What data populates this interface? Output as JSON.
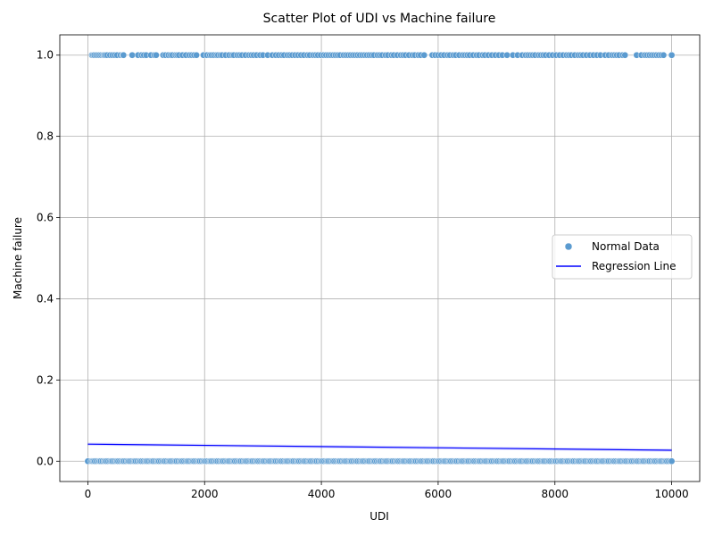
{
  "chart_data": {
    "type": "scatter",
    "title": "Scatter Plot of UDI vs Machine failure",
    "xlabel": "UDI",
    "ylabel": "Machine failure",
    "xlim": [
      -480,
      10480
    ],
    "ylim": [
      -0.05,
      1.05
    ],
    "xticks": [
      0,
      2000,
      4000,
      6000,
      8000,
      10000
    ],
    "yticks": [
      0.0,
      0.2,
      0.4,
      0.6,
      0.8,
      1.0
    ],
    "xtick_labels": [
      "0",
      "2000",
      "4000",
      "6000",
      "8000",
      "10000"
    ],
    "ytick_labels": [
      "0.0",
      "0.2",
      "0.4",
      "0.6",
      "0.8",
      "1.0"
    ],
    "grid": true,
    "legend_position": "center-right",
    "series": [
      {
        "name": "Normal Data",
        "kind": "scatter",
        "color": "#5b9bd0",
        "edgecolor": "#ffffff",
        "x_zero": [
          0,
          60,
          80,
          100,
          120,
          150,
          180,
          200,
          220,
          250,
          280,
          300,
          320,
          350,
          380,
          400,
          420,
          450,
          480,
          500,
          520,
          550,
          580,
          600,
          620,
          650,
          680,
          700,
          720,
          750,
          780,
          800,
          820,
          850,
          880,
          900,
          920,
          950,
          980,
          1000,
          1020,
          1050,
          1080,
          1100,
          1120,
          1150,
          1180,
          1200,
          1220,
          1250,
          1280,
          1300,
          1320,
          1350,
          1380,
          1400,
          1420,
          1450,
          1480,
          1500,
          1520,
          1550,
          1580,
          1600,
          1620,
          1650,
          1680,
          1700,
          1720,
          1750,
          1780,
          1800,
          1820,
          1850,
          1880,
          1900,
          1920,
          1950,
          1980,
          2000,
          2020,
          2050,
          2080,
          2100,
          2120,
          2150,
          2180,
          2200,
          2220,
          2250,
          2280,
          2300,
          2320,
          2350,
          2380,
          2400,
          2420,
          2450,
          2480,
          2500,
          2520,
          2550,
          2580,
          2600,
          2620,
          2650,
          2680,
          2700,
          2720,
          2750,
          2780,
          2800,
          2820,
          2850,
          2880,
          2900,
          2920,
          2950,
          2980,
          3000,
          3020,
          3050,
          3080,
          3100,
          3120,
          3150,
          3180,
          3200,
          3220,
          3250,
          3280,
          3300,
          3320,
          3350,
          3380,
          3400,
          3420,
          3450,
          3480,
          3500,
          3520,
          3550,
          3580,
          3600,
          3620,
          3650,
          3680,
          3700,
          3720,
          3750,
          3780,
          3800,
          3820,
          3850,
          3880,
          3900,
          3920,
          3950,
          3980,
          4000,
          4020,
          4050,
          4080,
          4100,
          4120,
          4150,
          4180,
          4200,
          4220,
          4250,
          4280,
          4300,
          4320,
          4350,
          4380,
          4400,
          4420,
          4450,
          4480,
          4500,
          4520,
          4550,
          4580,
          4600,
          4620,
          4650,
          4680,
          4700,
          4720,
          4750,
          4780,
          4800,
          4820,
          4850,
          4880,
          4900,
          4920,
          4950,
          4980,
          5000,
          5020,
          5050,
          5080,
          5100,
          5120,
          5150,
          5180,
          5200,
          5220,
          5250,
          5280,
          5300,
          5320,
          5350,
          5380,
          5400,
          5420,
          5450,
          5480,
          5500,
          5520,
          5550,
          5580,
          5600,
          5620,
          5650,
          5680,
          5700,
          5720,
          5750,
          5780,
          5800,
          5820,
          5850,
          5880,
          5900,
          5920,
          5950,
          5980,
          6000,
          6020,
          6050,
          6080,
          6100,
          6120,
          6150,
          6180,
          6200,
          6220,
          6250,
          6280,
          6300,
          6320,
          6350,
          6380,
          6400,
          6420,
          6450,
          6480,
          6500,
          6520,
          6550,
          6580,
          6600,
          6620,
          6650,
          6680,
          6700,
          6720,
          6750,
          6780,
          6800,
          6820,
          6850,
          6880,
          6900,
          6920,
          6950,
          6980,
          7000,
          7020,
          7050,
          7080,
          7100,
          7120,
          7150,
          7180,
          7200,
          7220,
          7250,
          7280,
          7300,
          7320,
          7350,
          7380,
          7400,
          7420,
          7450,
          7480,
          7500,
          7520,
          7550,
          7580,
          7600,
          7620,
          7650,
          7680,
          7700,
          7720,
          7750,
          7780,
          7800,
          7820,
          7850,
          7880,
          7900,
          7920,
          7950,
          7980,
          8000,
          8020,
          8050,
          8080,
          8100,
          8120,
          8150,
          8180,
          8200,
          8220,
          8250,
          8280,
          8300,
          8320,
          8350,
          8380,
          8400,
          8420,
          8450,
          8480,
          8500,
          8520,
          8550,
          8580,
          8600,
          8620,
          8650,
          8680,
          8700,
          8720,
          8750,
          8780,
          8800,
          8820,
          8850,
          8880,
          8900,
          8920,
          8950,
          8980,
          9000,
          9020,
          9050,
          9080,
          9100,
          9120,
          9150,
          9180,
          9200,
          9220,
          9250,
          9280,
          9300,
          9320,
          9350,
          9380,
          9400,
          9420,
          9450,
          9480,
          9500,
          9520,
          9550,
          9580,
          9600,
          9620,
          9650,
          9680,
          9700,
          9720,
          9750,
          9780,
          9800,
          9820,
          9850,
          9880,
          9900,
          9920,
          9950,
          9980,
          10000
        ],
        "x_one": [
          70,
          90,
          110,
          140,
          170,
          200,
          230,
          260,
          280,
          300,
          330,
          380,
          420,
          460,
          500,
          560,
          600,
          610,
          760,
          860,
          920,
          960,
          1000,
          1080,
          1140,
          1170,
          1290,
          1330,
          1380,
          1420,
          1450,
          1500,
          1530,
          1560,
          1620,
          1680,
          1740,
          1780,
          1820,
          1860,
          1980,
          2040,
          2090,
          2120,
          2160,
          2200,
          2230,
          2270,
          2300,
          2360,
          2420,
          2470,
          2500,
          2560,
          2600,
          2640,
          2700,
          2760,
          2800,
          2840,
          2890,
          2950,
          3000,
          3080,
          3160,
          3220,
          3270,
          3320,
          3360,
          3420,
          3460,
          3500,
          3550,
          3600,
          3650,
          3700,
          3760,
          3800,
          3860,
          3900,
          3940,
          3990,
          4040,
          4080,
          4120,
          4160,
          4200,
          4240,
          4280,
          4320,
          4380,
          4420,
          4460,
          4500,
          4540,
          4580,
          4620,
          4660,
          4700,
          4740,
          4780,
          4820,
          4860,
          4900,
          4960,
          5000,
          5040,
          5100,
          5140,
          5200,
          5240,
          5300,
          5360,
          5400,
          5440,
          5500,
          5560,
          5600,
          5660,
          5700,
          5760,
          5900,
          5950,
          6000,
          6050,
          6100,
          6160,
          6200,
          6260,
          6300,
          6360,
          6420,
          6460,
          6500,
          6540,
          6600,
          6660,
          6700,
          6760,
          6800,
          6860,
          6920,
          6980,
          7040,
          7100,
          7180,
          7280,
          7360,
          7440,
          7500,
          7540,
          7580,
          7620,
          7660,
          7720,
          7760,
          7800,
          7840,
          7900,
          7960,
          8020,
          8080,
          8140,
          8200,
          8240,
          8280,
          8340,
          8400,
          8440,
          8480,
          8540,
          8600,
          8660,
          8720,
          8780,
          8860,
          8920,
          8980,
          9020,
          9060,
          9100,
          9160,
          9200,
          9400,
          9480,
          9540,
          9580,
          9620,
          9660,
          9700,
          9740,
          9780,
          9820,
          9860,
          10000
        ]
      },
      {
        "name": "Regression Line",
        "kind": "line",
        "color": "#0000ff",
        "x": [
          0,
          10000
        ],
        "y": [
          0.042,
          0.027
        ]
      }
    ]
  }
}
